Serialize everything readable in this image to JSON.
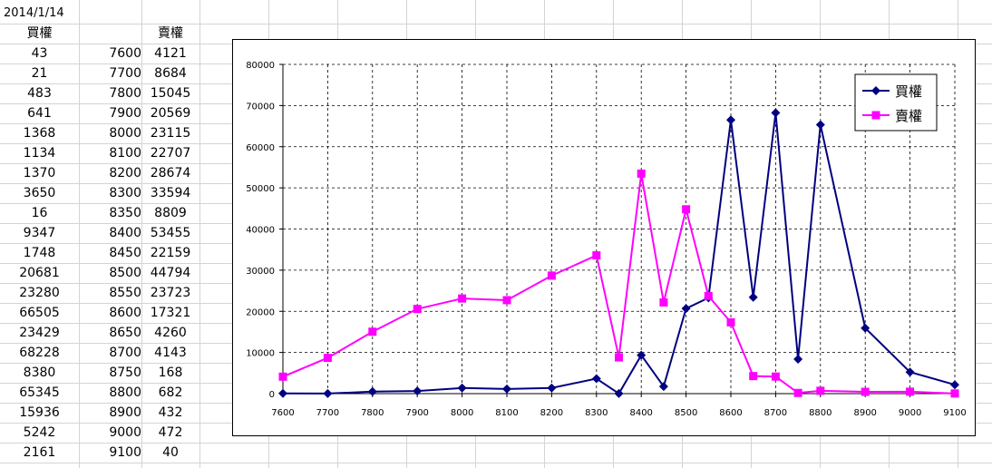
{
  "sheet": {
    "date": "2014/1/14",
    "headers": {
      "call": "買權",
      "strike": "",
      "put": "賣權"
    },
    "rows": [
      {
        "call": "43",
        "strike": "7600",
        "put": "4121"
      },
      {
        "call": "21",
        "strike": "7700",
        "put": "8684"
      },
      {
        "call": "483",
        "strike": "7800",
        "put": "15045"
      },
      {
        "call": "641",
        "strike": "7900",
        "put": "20569"
      },
      {
        "call": "1368",
        "strike": "8000",
        "put": "23115"
      },
      {
        "call": "1134",
        "strike": "8100",
        "put": "22707"
      },
      {
        "call": "1370",
        "strike": "8200",
        "put": "28674"
      },
      {
        "call": "3650",
        "strike": "8300",
        "put": "33594"
      },
      {
        "call": "16",
        "strike": "8350",
        "put": "8809"
      },
      {
        "call": "9347",
        "strike": "8400",
        "put": "53455"
      },
      {
        "call": "1748",
        "strike": "8450",
        "put": "22159"
      },
      {
        "call": "20681",
        "strike": "8500",
        "put": "44794"
      },
      {
        "call": "23280",
        "strike": "8550",
        "put": "23723"
      },
      {
        "call": "66505",
        "strike": "8600",
        "put": "17321"
      },
      {
        "call": "23429",
        "strike": "8650",
        "put": "4260"
      },
      {
        "call": "68228",
        "strike": "8700",
        "put": "4143"
      },
      {
        "call": "8380",
        "strike": "8750",
        "put": "168"
      },
      {
        "call": "65345",
        "strike": "8800",
        "put": "682"
      },
      {
        "call": "15936",
        "strike": "8900",
        "put": "432"
      },
      {
        "call": "5242",
        "strike": "9000",
        "put": "472"
      },
      {
        "call": "2161",
        "strike": "9100",
        "put": "40"
      }
    ]
  },
  "chart_data": {
    "type": "line",
    "title": "",
    "xlabel": "",
    "ylabel": "",
    "x": [
      7600,
      7700,
      7800,
      7900,
      8000,
      8100,
      8200,
      8300,
      8350,
      8400,
      8450,
      8500,
      8550,
      8600,
      8650,
      8700,
      8750,
      8800,
      8900,
      9000,
      9100
    ],
    "xticks": [
      7600,
      7700,
      7800,
      7900,
      8000,
      8100,
      8200,
      8300,
      8400,
      8500,
      8600,
      8700,
      8800,
      8900,
      9000,
      9100
    ],
    "ylim": [
      0,
      80000
    ],
    "yticks": [
      0,
      10000,
      20000,
      30000,
      40000,
      50000,
      60000,
      70000,
      80000
    ],
    "grid": true,
    "legend": "top-right",
    "series": [
      {
        "name": "買權",
        "color": "#000080",
        "marker": "diamond",
        "values": [
          43,
          21,
          483,
          641,
          1368,
          1134,
          1370,
          3650,
          16,
          9347,
          1748,
          20681,
          23280,
          66505,
          23429,
          68228,
          8380,
          65345,
          15936,
          5242,
          2161
        ]
      },
      {
        "name": "賣權",
        "color": "#FF00FF",
        "marker": "square",
        "values": [
          4121,
          8684,
          15045,
          20569,
          23115,
          22707,
          28674,
          33594,
          8809,
          53455,
          22159,
          44794,
          23723,
          17321,
          4260,
          4143,
          168,
          682,
          432,
          472,
          40
        ]
      }
    ]
  }
}
